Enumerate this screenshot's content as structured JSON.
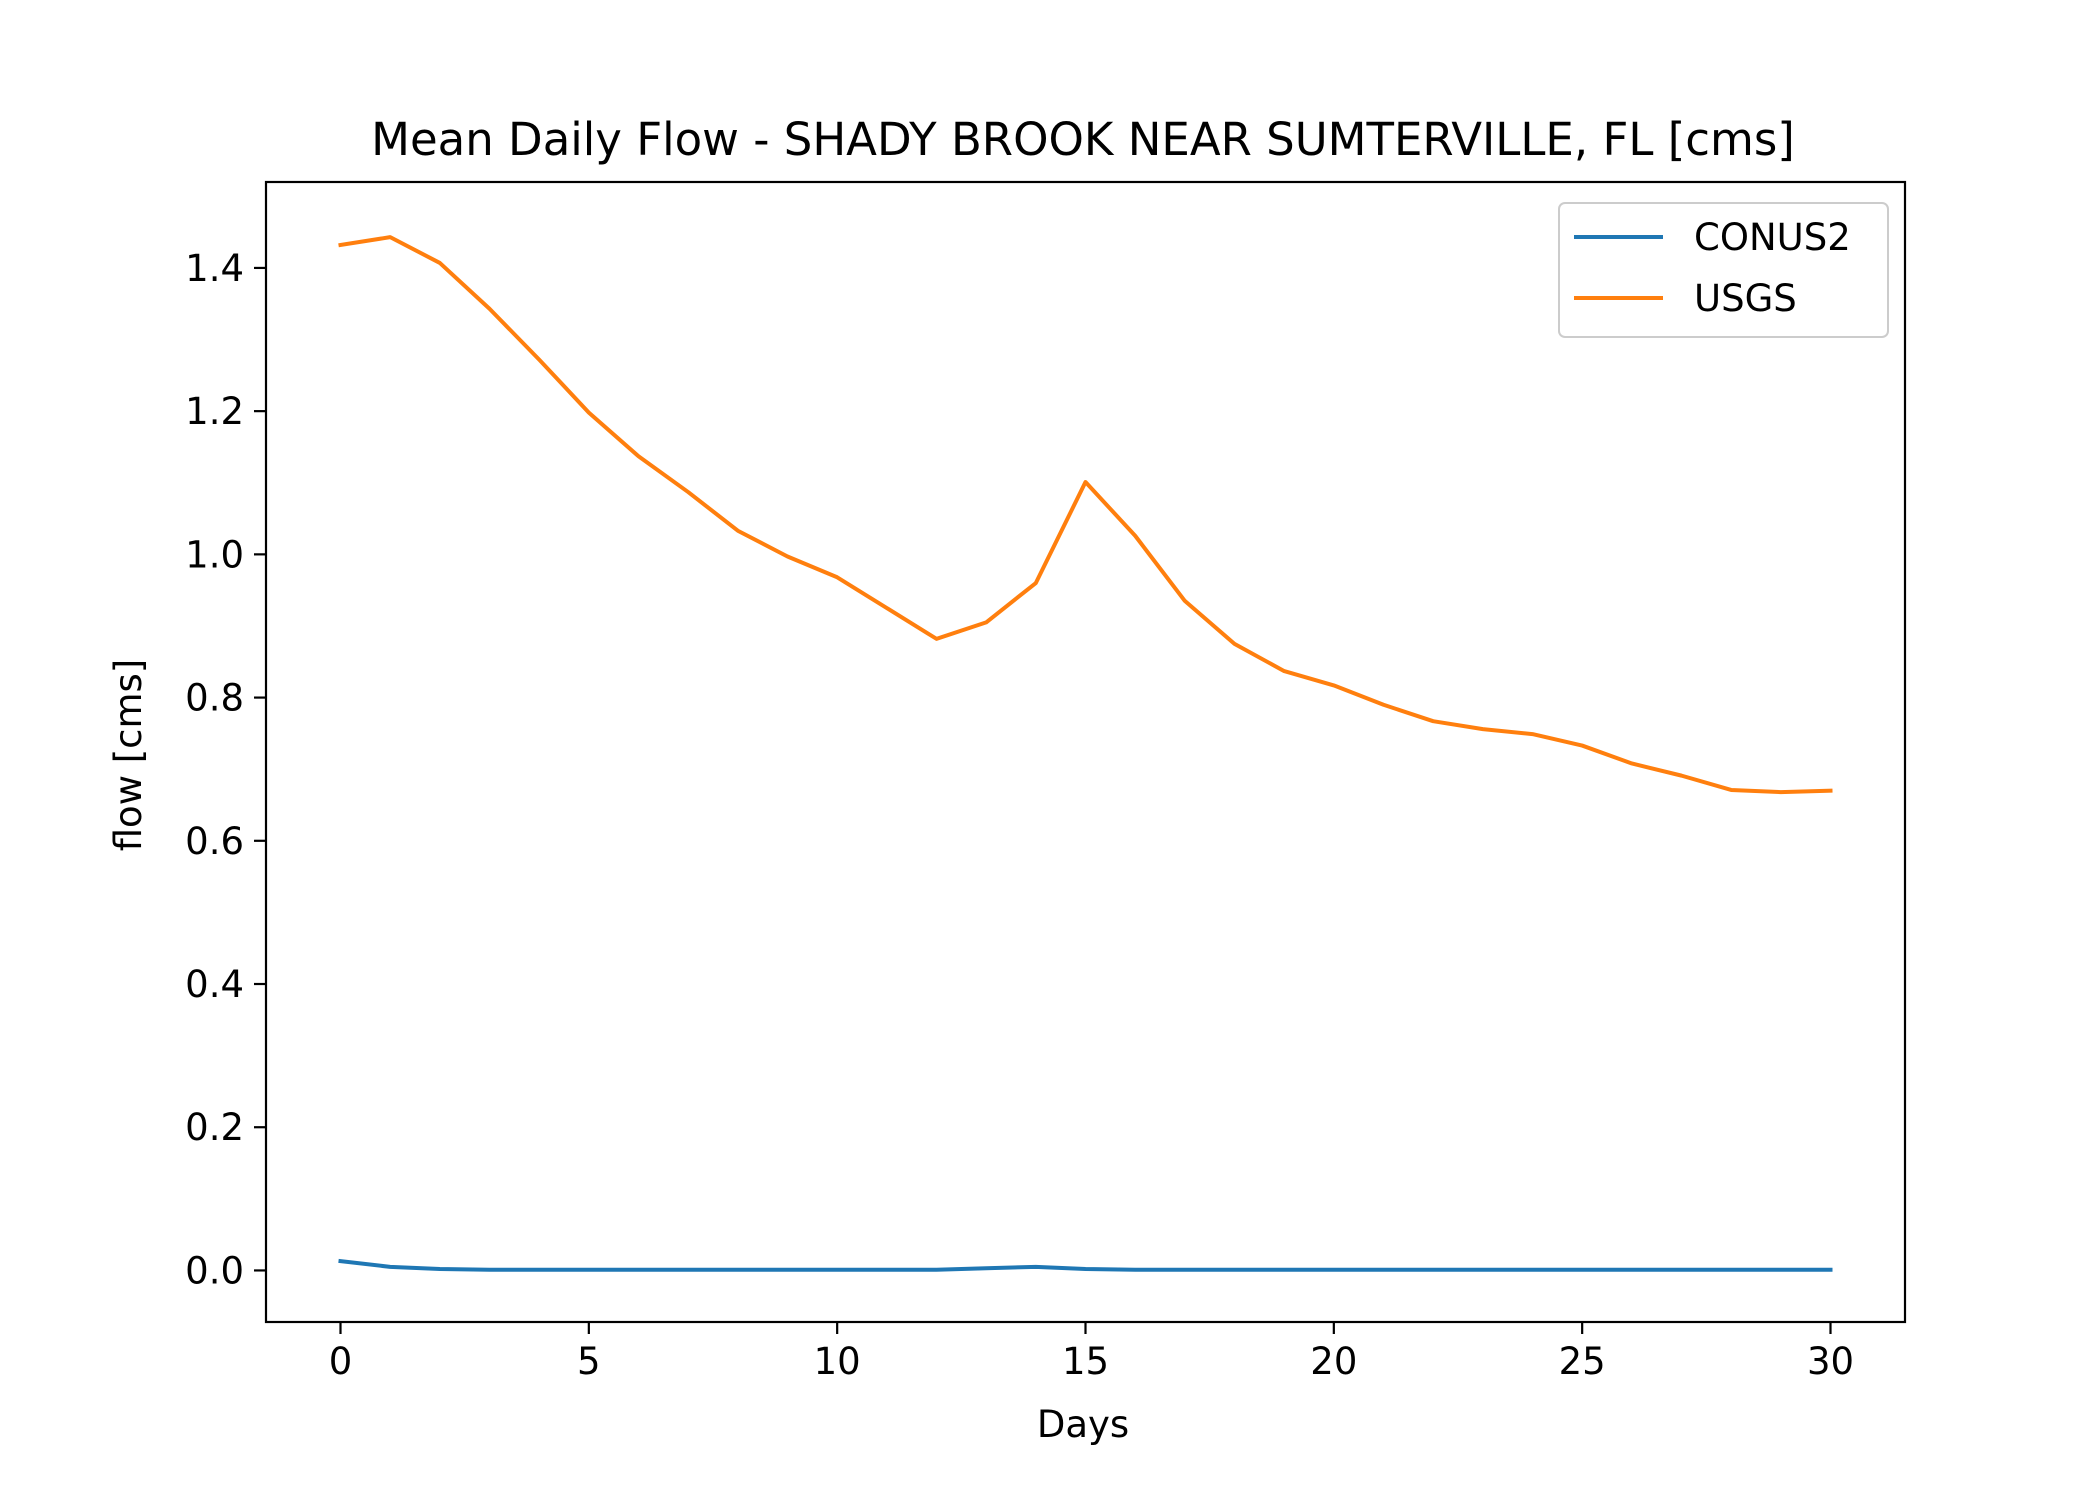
{
  "chart_data": {
    "type": "line",
    "title": "Mean Daily Flow - SHADY BROOK NEAR SUMTERVILLE, FL [cms]",
    "xlabel": "Days",
    "ylabel": "flow [cms]",
    "xlim": [
      -1.5,
      31.5
    ],
    "ylim": [
      -0.072,
      1.52
    ],
    "xticks": [
      0,
      5,
      10,
      15,
      20,
      25,
      30
    ],
    "xtick_labels": [
      "0",
      "5",
      "10",
      "15",
      "20",
      "25",
      "30"
    ],
    "yticks": [
      0.0,
      0.2,
      0.4,
      0.6,
      0.8,
      1.0,
      1.2,
      1.4
    ],
    "ytick_labels": [
      "0.0",
      "0.2",
      "0.4",
      "0.6",
      "0.8",
      "1.0",
      "1.2",
      "1.4"
    ],
    "grid": false,
    "legend_position": "top-right",
    "x": [
      0,
      1,
      2,
      3,
      4,
      5,
      6,
      7,
      8,
      9,
      10,
      11,
      12,
      13,
      14,
      15,
      16,
      17,
      18,
      19,
      20,
      21,
      22,
      23,
      24,
      25,
      26,
      27,
      28,
      29,
      30
    ],
    "series": [
      {
        "name": "CONUS2",
        "color": "#1f77b4",
        "values": [
          0.013,
          0.005,
          0.002,
          0.001,
          0.001,
          0.001,
          0.001,
          0.001,
          0.001,
          0.001,
          0.001,
          0.001,
          0.001,
          0.003,
          0.005,
          0.002,
          0.001,
          0.001,
          0.001,
          0.001,
          0.001,
          0.001,
          0.001,
          0.001,
          0.001,
          0.001,
          0.001,
          0.001,
          0.001,
          0.001,
          0.001
        ]
      },
      {
        "name": "USGS",
        "color": "#ff7f0e",
        "values": [
          1.432,
          1.443,
          1.407,
          1.343,
          1.272,
          1.198,
          1.137,
          1.087,
          1.033,
          0.997,
          0.968,
          0.925,
          0.882,
          0.905,
          0.96,
          1.101,
          1.026,
          0.935,
          0.875,
          0.837,
          0.817,
          0.79,
          0.767,
          0.756,
          0.749,
          0.733,
          0.708,
          0.691,
          0.671,
          0.668,
          0.67
        ]
      }
    ]
  }
}
